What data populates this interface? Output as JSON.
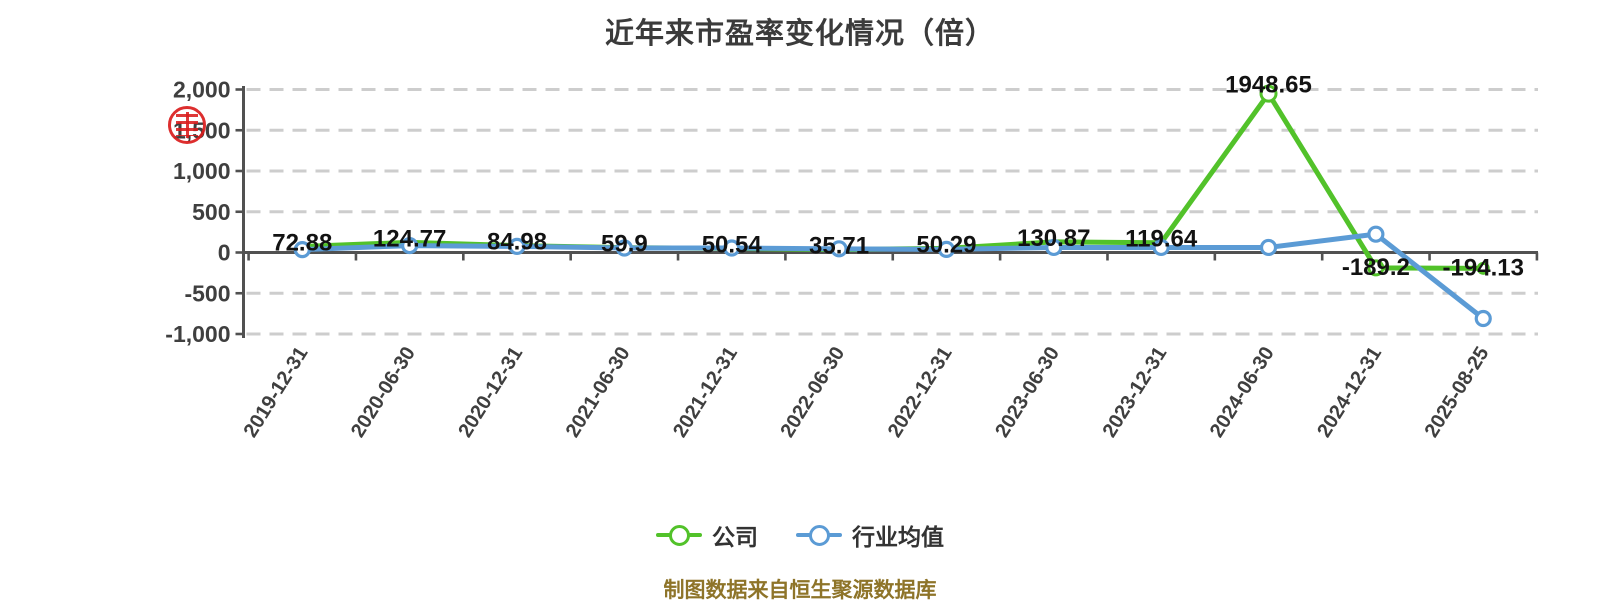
{
  "caption": {
    "text": "制图数据来自恒生聚源数据库"
  },
  "icons": {
    "red_seal": "red-seal-stamp-icon"
  },
  "colors": {
    "company_line": "#52c22a",
    "industry_line": "#5b9bd5",
    "axis": "#515151",
    "grid": "#cdcdcd",
    "caption_text": "#8e7429",
    "seal_red": "#da1c1c"
  },
  "chart_data": {
    "type": "line",
    "title": "近年来市盈率变化情况（倍）",
    "categories": [
      "2019-12-31",
      "2020-06-30",
      "2020-12-31",
      "2021-06-30",
      "2021-12-31",
      "2022-06-30",
      "2022-12-31",
      "2023-06-30",
      "2023-12-31",
      "2024-06-30",
      "2024-12-31",
      "2025-08-25"
    ],
    "series": [
      {
        "name": "公司",
        "color": "#52c22a",
        "values": [
          72.88,
          124.77,
          84.98,
          59.9,
          50.54,
          35.71,
          50.29,
          130.87,
          119.64,
          1948.65,
          -189.2,
          -194.13
        ],
        "labels": [
          "72.88",
          "124.77",
          "84.98",
          "59.9",
          "50.54",
          "35.71",
          "50.29",
          "130.87",
          "119.64",
          "1948.65",
          "-189.2",
          "-194.13"
        ],
        "labels_shown": true
      },
      {
        "name": "行业均值",
        "color": "#5b9bd5",
        "values": [
          35,
          85,
          75,
          55,
          55,
          45,
          38,
          62,
          62,
          62,
          225,
          -810
        ],
        "labels_shown": false,
        "note": "series not labeled on chart; values estimated from point positions"
      }
    ],
    "ylabel": "",
    "xlabel": "",
    "ylim": [
      -1000,
      2000
    ],
    "y_ticks": [
      {
        "v": 2000,
        "label": "2,000"
      },
      {
        "v": 1500,
        "label": "1,500"
      },
      {
        "v": 1000,
        "label": "1,000"
      },
      {
        "v": 500,
        "label": "500"
      },
      {
        "v": 0,
        "label": "0"
      },
      {
        "v": -500,
        "label": "-500"
      },
      {
        "v": -1000,
        "label": "-1,000"
      }
    ],
    "grid": {
      "horizontal": true,
      "style": "dashed",
      "color": "#cdcdcd"
    },
    "legend_position": "bottom",
    "x_label_rotation_deg": -58
  }
}
